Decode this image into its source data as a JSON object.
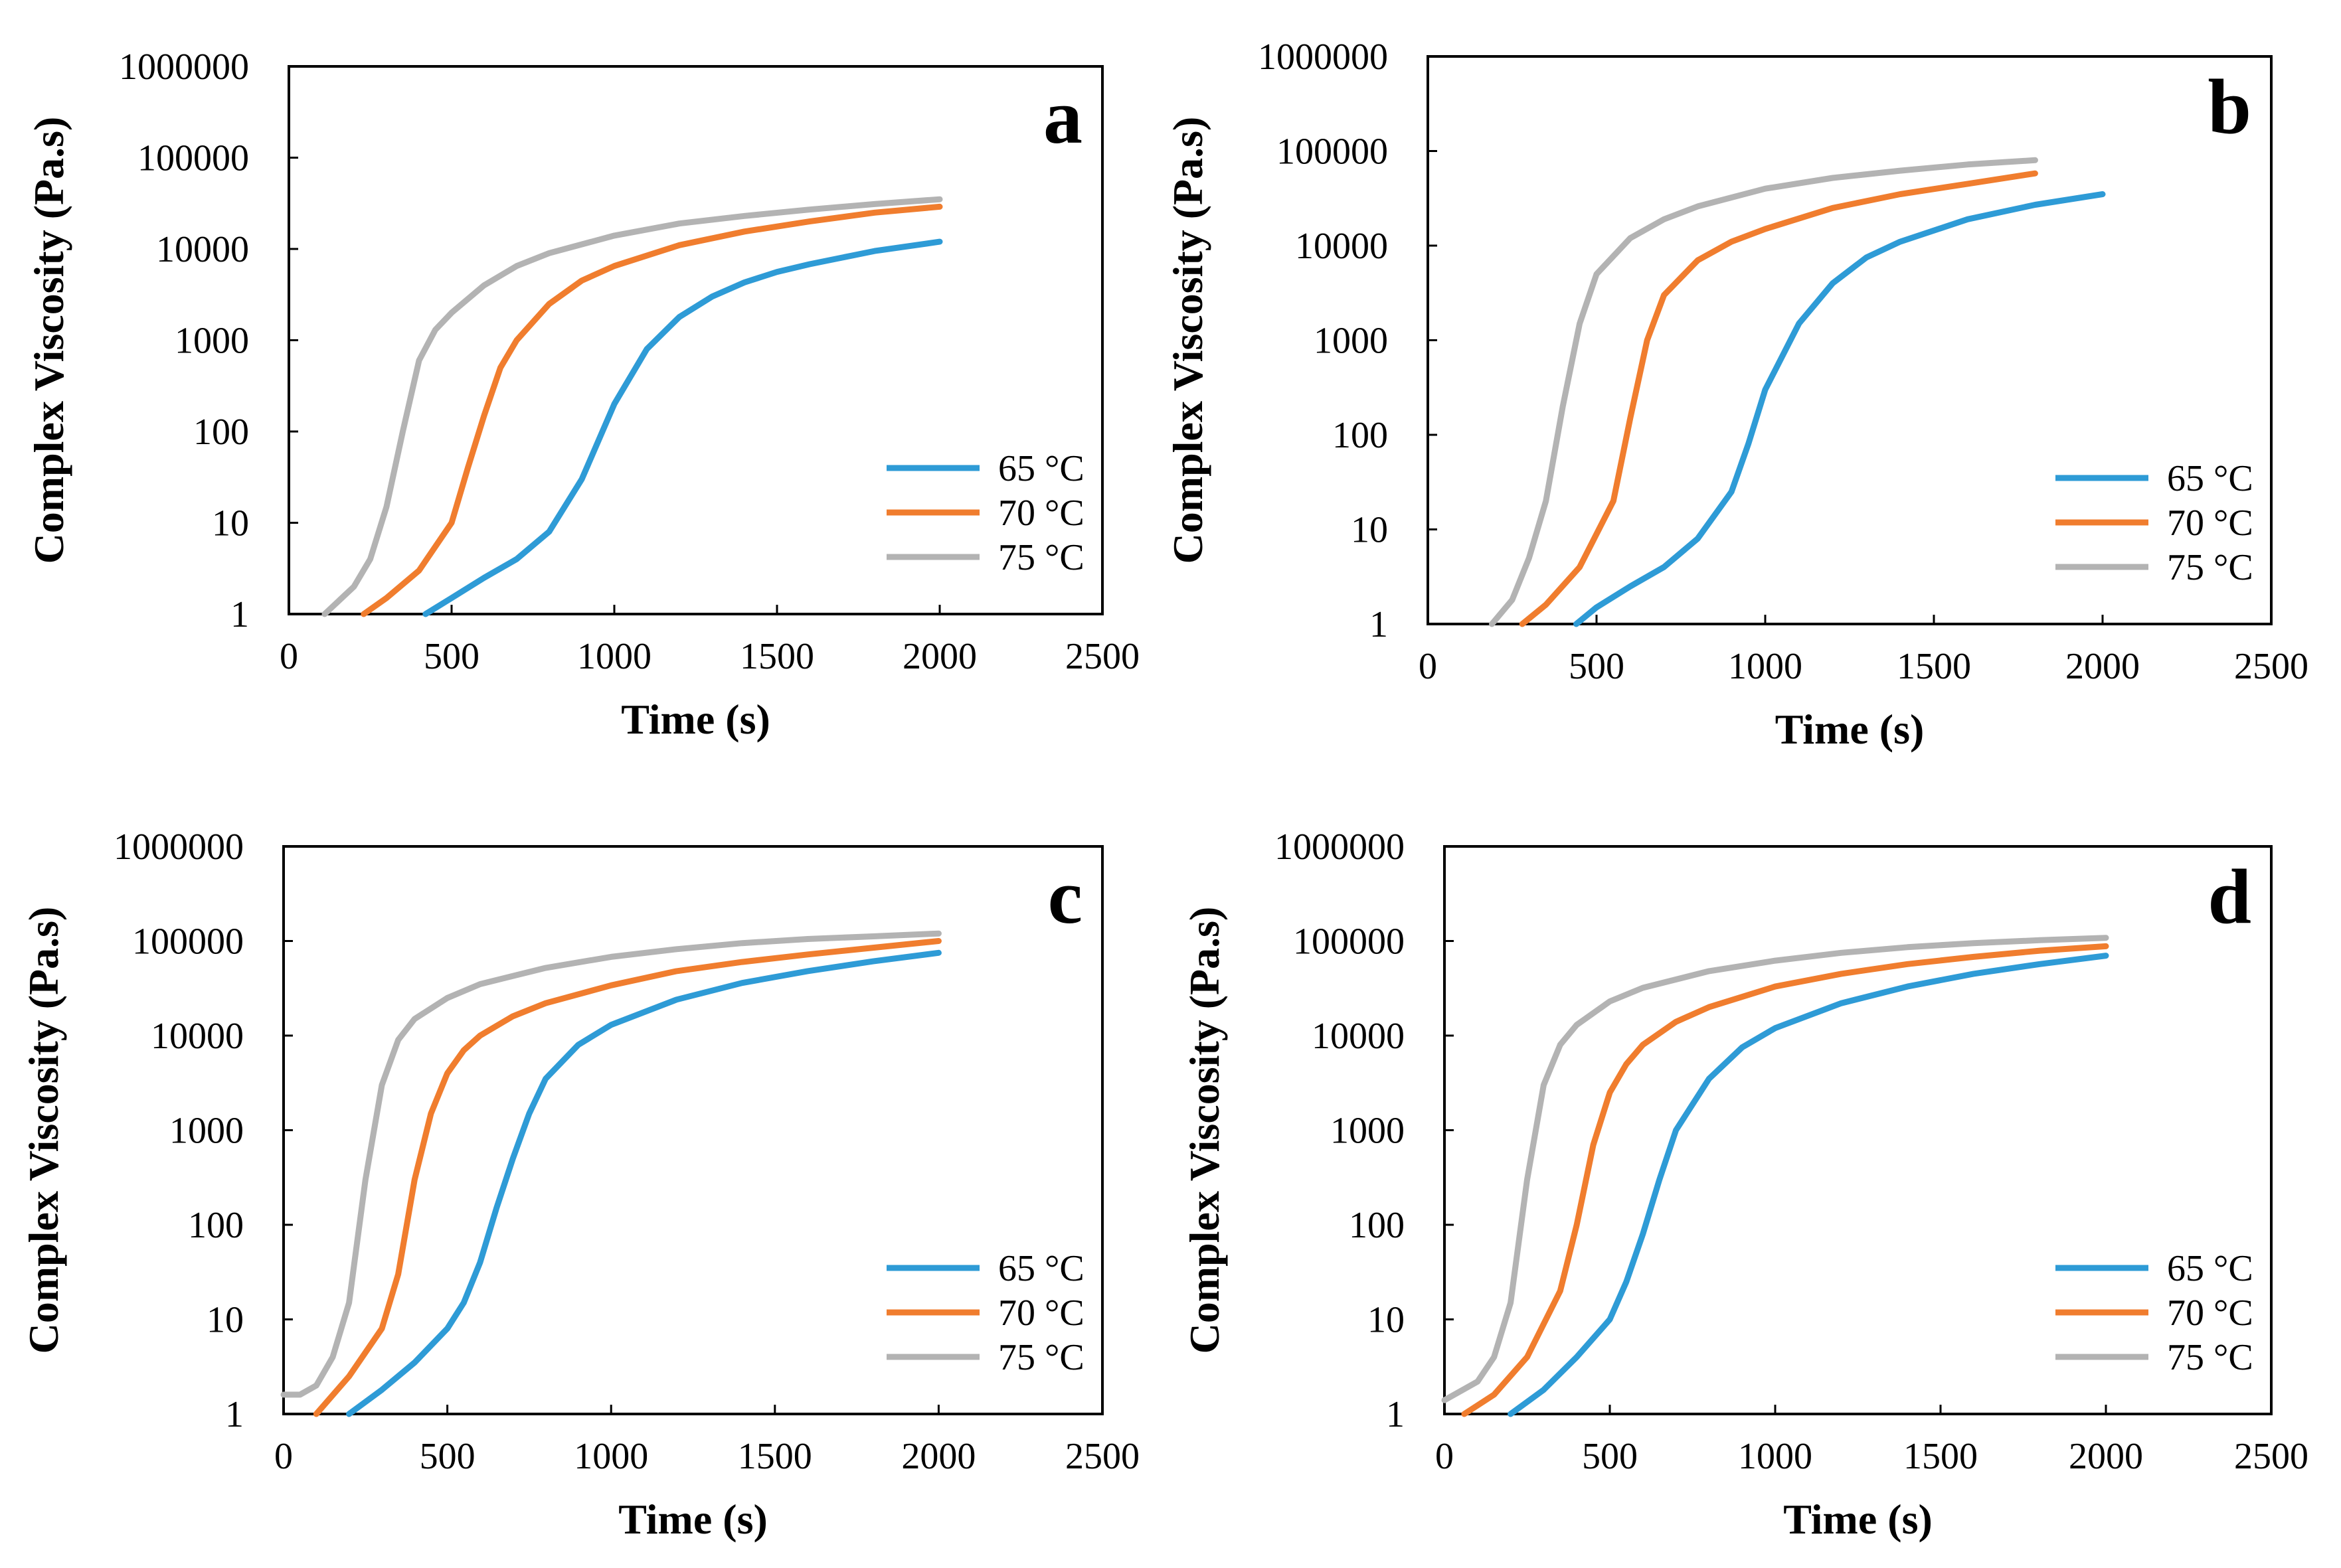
{
  "chart_data": [
    {
      "type": "line",
      "panel_label": "a",
      "xlabel": "Time (s)",
      "ylabel": "Complex Viscosity (Pa.s)",
      "yscale": "log",
      "xlim": [
        0,
        2500
      ],
      "ylim": [
        1,
        1000000
      ],
      "xticks": [
        "0",
        "500",
        "1000",
        "1500",
        "2000",
        "2500"
      ],
      "yticks": [
        "1",
        "10",
        "100",
        "1000",
        "10000",
        "100000",
        "1000000"
      ],
      "legend_position": "lower-right",
      "series": [
        {
          "name": "65 °C",
          "color": "#2e9bd6",
          "x": [
            420,
            500,
            600,
            700,
            800,
            900,
            1000,
            1100,
            1200,
            1300,
            1400,
            1500,
            1600,
            1800,
            2000
          ],
          "y": [
            1,
            1.5,
            2.5,
            4,
            8,
            30,
            200,
            800,
            1800,
            3000,
            4300,
            5600,
            6800,
            9500,
            12000
          ]
        },
        {
          "name": "70 °C",
          "color": "#f07d2e",
          "x": [
            230,
            300,
            400,
            500,
            550,
            600,
            650,
            700,
            800,
            900,
            1000,
            1200,
            1400,
            1600,
            1800,
            2000
          ],
          "y": [
            1,
            1.5,
            3,
            10,
            40,
            150,
            500,
            1000,
            2500,
            4500,
            6500,
            11000,
            15500,
            20000,
            25000,
            29000
          ]
        },
        {
          "name": "75 °C",
          "color": "#b3b3b3",
          "x": [
            110,
            200,
            250,
            300,
            350,
            400,
            450,
            500,
            600,
            700,
            800,
            1000,
            1200,
            1400,
            1600,
            1800,
            2000
          ],
          "y": [
            1,
            2,
            4,
            15,
            100,
            600,
            1300,
            2000,
            4000,
            6500,
            9000,
            14000,
            19000,
            23000,
            27000,
            31000,
            35000
          ]
        }
      ]
    },
    {
      "type": "line",
      "panel_label": "b",
      "xlabel": "Time (s)",
      "ylabel": "Complex Viscosity (Pa.s)",
      "yscale": "log",
      "xlim": [
        0,
        2500
      ],
      "ylim": [
        1,
        1000000
      ],
      "xticks": [
        "0",
        "500",
        "1000",
        "1500",
        "2000",
        "2500"
      ],
      "yticks": [
        "1",
        "10",
        "100",
        "1000",
        "10000",
        "100000",
        "1000000"
      ],
      "legend_position": "lower-right",
      "series": [
        {
          "name": "65 °C",
          "color": "#2e9bd6",
          "x": [
            440,
            500,
            600,
            700,
            800,
            900,
            950,
            1000,
            1100,
            1200,
            1300,
            1400,
            1600,
            1800,
            2000
          ],
          "y": [
            1,
            1.5,
            2.5,
            4,
            8,
            25,
            80,
            300,
            1500,
            4000,
            7500,
            11000,
            19000,
            27000,
            35000
          ]
        },
        {
          "name": "70 °C",
          "color": "#f07d2e",
          "x": [
            280,
            350,
            450,
            550,
            600,
            650,
            700,
            800,
            900,
            1000,
            1200,
            1400,
            1600,
            1800
          ],
          "y": [
            1,
            1.6,
            4,
            20,
            150,
            1000,
            3000,
            7000,
            11000,
            15000,
            25000,
            35000,
            45000,
            58000
          ]
        },
        {
          "name": "75 °C",
          "color": "#b3b3b3",
          "x": [
            190,
            250,
            300,
            350,
            400,
            450,
            500,
            600,
            700,
            800,
            1000,
            1200,
            1400,
            1600,
            1800
          ],
          "y": [
            1,
            1.8,
            5,
            20,
            200,
            1500,
            5000,
            12000,
            19000,
            26000,
            40000,
            52000,
            62000,
            72000,
            80000
          ]
        }
      ]
    },
    {
      "type": "line",
      "panel_label": "c",
      "xlabel": "Time (s)",
      "ylabel": "Complex Viscosity (Pa.s)",
      "yscale": "log",
      "xlim": [
        0,
        2500
      ],
      "ylim": [
        1,
        1000000
      ],
      "xticks": [
        "0",
        "500",
        "1000",
        "1500",
        "2000",
        "2500"
      ],
      "yticks": [
        "1",
        "10",
        "100",
        "1000",
        "10000",
        "100000",
        "1000000"
      ],
      "legend_position": "lower-right",
      "series": [
        {
          "name": "65 °C",
          "color": "#2e9bd6",
          "x": [
            200,
            300,
            400,
            500,
            550,
            600,
            650,
            700,
            750,
            800,
            900,
            1000,
            1200,
            1400,
            1600,
            1800,
            2000
          ],
          "y": [
            1,
            1.8,
            3.5,
            8,
            15,
            40,
            150,
            500,
            1500,
            3500,
            8000,
            13000,
            24000,
            36000,
            48000,
            61000,
            75000
          ]
        },
        {
          "name": "70 °C",
          "color": "#f07d2e",
          "x": [
            100,
            200,
            300,
            350,
            400,
            450,
            500,
            550,
            600,
            700,
            800,
            1000,
            1200,
            1400,
            1600,
            1800,
            2000
          ],
          "y": [
            1,
            2.5,
            8,
            30,
            300,
            1500,
            4000,
            7000,
            10000,
            16000,
            22000,
            34000,
            48000,
            60000,
            72000,
            85000,
            100000
          ]
        },
        {
          "name": "75 °C",
          "color": "#b3b3b3",
          "x": [
            0,
            50,
            100,
            150,
            200,
            250,
            300,
            350,
            400,
            500,
            600,
            800,
            1000,
            1200,
            1400,
            1600,
            1800,
            2000
          ],
          "y": [
            1.6,
            1.6,
            2,
            4,
            15,
            300,
            3000,
            9000,
            15000,
            25000,
            35000,
            52000,
            68000,
            82000,
            95000,
            105000,
            112000,
            120000
          ]
        }
      ]
    },
    {
      "type": "line",
      "panel_label": "d",
      "xlabel": "Time (s)",
      "ylabel": "Complex Viscosity (Pa.s)",
      "yscale": "log",
      "xlim": [
        0,
        2500
      ],
      "ylim": [
        1,
        1000000
      ],
      "xticks": [
        "0",
        "500",
        "1000",
        "1500",
        "2000",
        "2500"
      ],
      "yticks": [
        "1",
        "10",
        "100",
        "1000",
        "10000",
        "100000",
        "1000000"
      ],
      "legend_position": "lower-right",
      "series": [
        {
          "name": "65 °C",
          "color": "#2e9bd6",
          "x": [
            200,
            300,
            400,
            500,
            550,
            600,
            650,
            700,
            800,
            900,
            1000,
            1200,
            1400,
            1600,
            1800,
            2000
          ],
          "y": [
            1,
            1.8,
            4,
            10,
            25,
            80,
            300,
            1000,
            3500,
            7500,
            12000,
            22000,
            33000,
            45000,
            57000,
            70000
          ]
        },
        {
          "name": "70 °C",
          "color": "#f07d2e",
          "x": [
            60,
            150,
            250,
            350,
            400,
            450,
            500,
            550,
            600,
            700,
            800,
            1000,
            1200,
            1400,
            1600,
            1800,
            2000
          ],
          "y": [
            1,
            1.6,
            4,
            20,
            100,
            700,
            2500,
            5000,
            8000,
            14000,
            20000,
            33000,
            45000,
            57000,
            68000,
            79000,
            88000
          ]
        },
        {
          "name": "75 °C",
          "color": "#b3b3b3",
          "x": [
            0,
            100,
            150,
            200,
            250,
            300,
            350,
            400,
            500,
            600,
            800,
            1000,
            1200,
            1400,
            1600,
            1800,
            2000
          ],
          "y": [
            1.4,
            2.2,
            4,
            15,
            300,
            3000,
            8000,
            13000,
            23000,
            32000,
            48000,
            62000,
            75000,
            86000,
            95000,
            102000,
            108000
          ]
        }
      ]
    }
  ]
}
